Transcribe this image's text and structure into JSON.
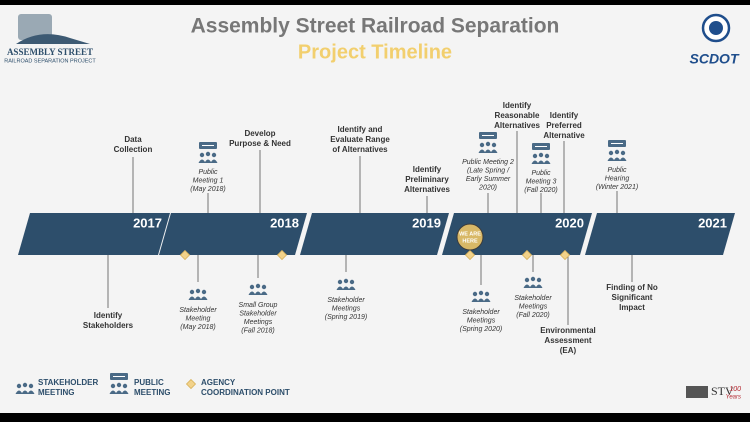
{
  "header": {
    "logo": {
      "title": "ASSEMBLY STREET",
      "subtitle": "RAILROAD SEPARATION PROJECT"
    },
    "title": "Assembly Street Railroad Separation",
    "subtitle": "Project Timeline",
    "agency_logo": {
      "name": "SCDOT"
    }
  },
  "timeline": {
    "years": [
      "2017",
      "2018",
      "2019",
      "2020",
      "2021"
    ],
    "marker": [
      "WE ARE",
      "HERE"
    ],
    "above": [
      {
        "kind": "milestone",
        "lines": [
          "Data",
          "Collection"
        ]
      },
      {
        "kind": "public",
        "lines": [
          "Public",
          "Meeting 1",
          "(May 2018)"
        ]
      },
      {
        "kind": "milestone",
        "lines": [
          "Develop",
          "Purpose & Need"
        ]
      },
      {
        "kind": "milestone",
        "lines": [
          "Identify and",
          "Evaluate Range",
          "of Alternatives"
        ]
      },
      {
        "kind": "milestone",
        "lines": [
          "Identify",
          "Preliminary",
          "Alternatives"
        ]
      },
      {
        "kind": "public",
        "lines": [
          "Public Meeting 2",
          "(Late Spring /",
          "Early Summer",
          "2020)"
        ]
      },
      {
        "kind": "milestone",
        "lines": [
          "Identify",
          "Reasonable",
          "Alternatives"
        ]
      },
      {
        "kind": "public",
        "lines": [
          "Public",
          "Meeting 3",
          "(Fall 2020)"
        ]
      },
      {
        "kind": "milestone",
        "lines": [
          "Identify",
          "Preferred",
          "Alternative"
        ]
      },
      {
        "kind": "public",
        "lines": [
          "Public",
          "Hearing",
          "(Winter 2021)"
        ]
      }
    ],
    "below": [
      {
        "kind": "milestone",
        "lines": [
          "Identify",
          "Stakeholders"
        ]
      },
      {
        "kind": "stakeholder",
        "lines": [
          "Stakeholder",
          "Meeting",
          "(May 2018)"
        ]
      },
      {
        "kind": "stakeholder",
        "lines": [
          "Small Group",
          "Stakeholder",
          "Meetings",
          "(Fall 2018)"
        ]
      },
      {
        "kind": "stakeholder",
        "lines": [
          "Stakeholder",
          "Meetings",
          "(Spring 2019)"
        ]
      },
      {
        "kind": "stakeholder",
        "lines": [
          "Stakeholder",
          "Meetings",
          "(Spring 2020)"
        ]
      },
      {
        "kind": "stakeholder",
        "lines": [
          "Stakeholder",
          "Meetings",
          "(Fall 2020)"
        ]
      },
      {
        "kind": "milestone",
        "lines": [
          "Environmental",
          "Assessment",
          "(EA)"
        ]
      },
      {
        "kind": "milestone",
        "lines": [
          "Finding of No",
          "Significant",
          "Impact"
        ]
      }
    ]
  },
  "legend": [
    {
      "kind": "stakeholder",
      "lines": [
        "STAKEHOLDER",
        "MEETING"
      ]
    },
    {
      "kind": "public",
      "lines": [
        "PUBLIC",
        "MEETING"
      ]
    },
    {
      "kind": "agency",
      "lines": [
        "AGENCY",
        "COORDINATION POINT"
      ]
    }
  ],
  "footer": {
    "logo": "STV",
    "badge": [
      "100",
      "Years"
    ]
  }
}
